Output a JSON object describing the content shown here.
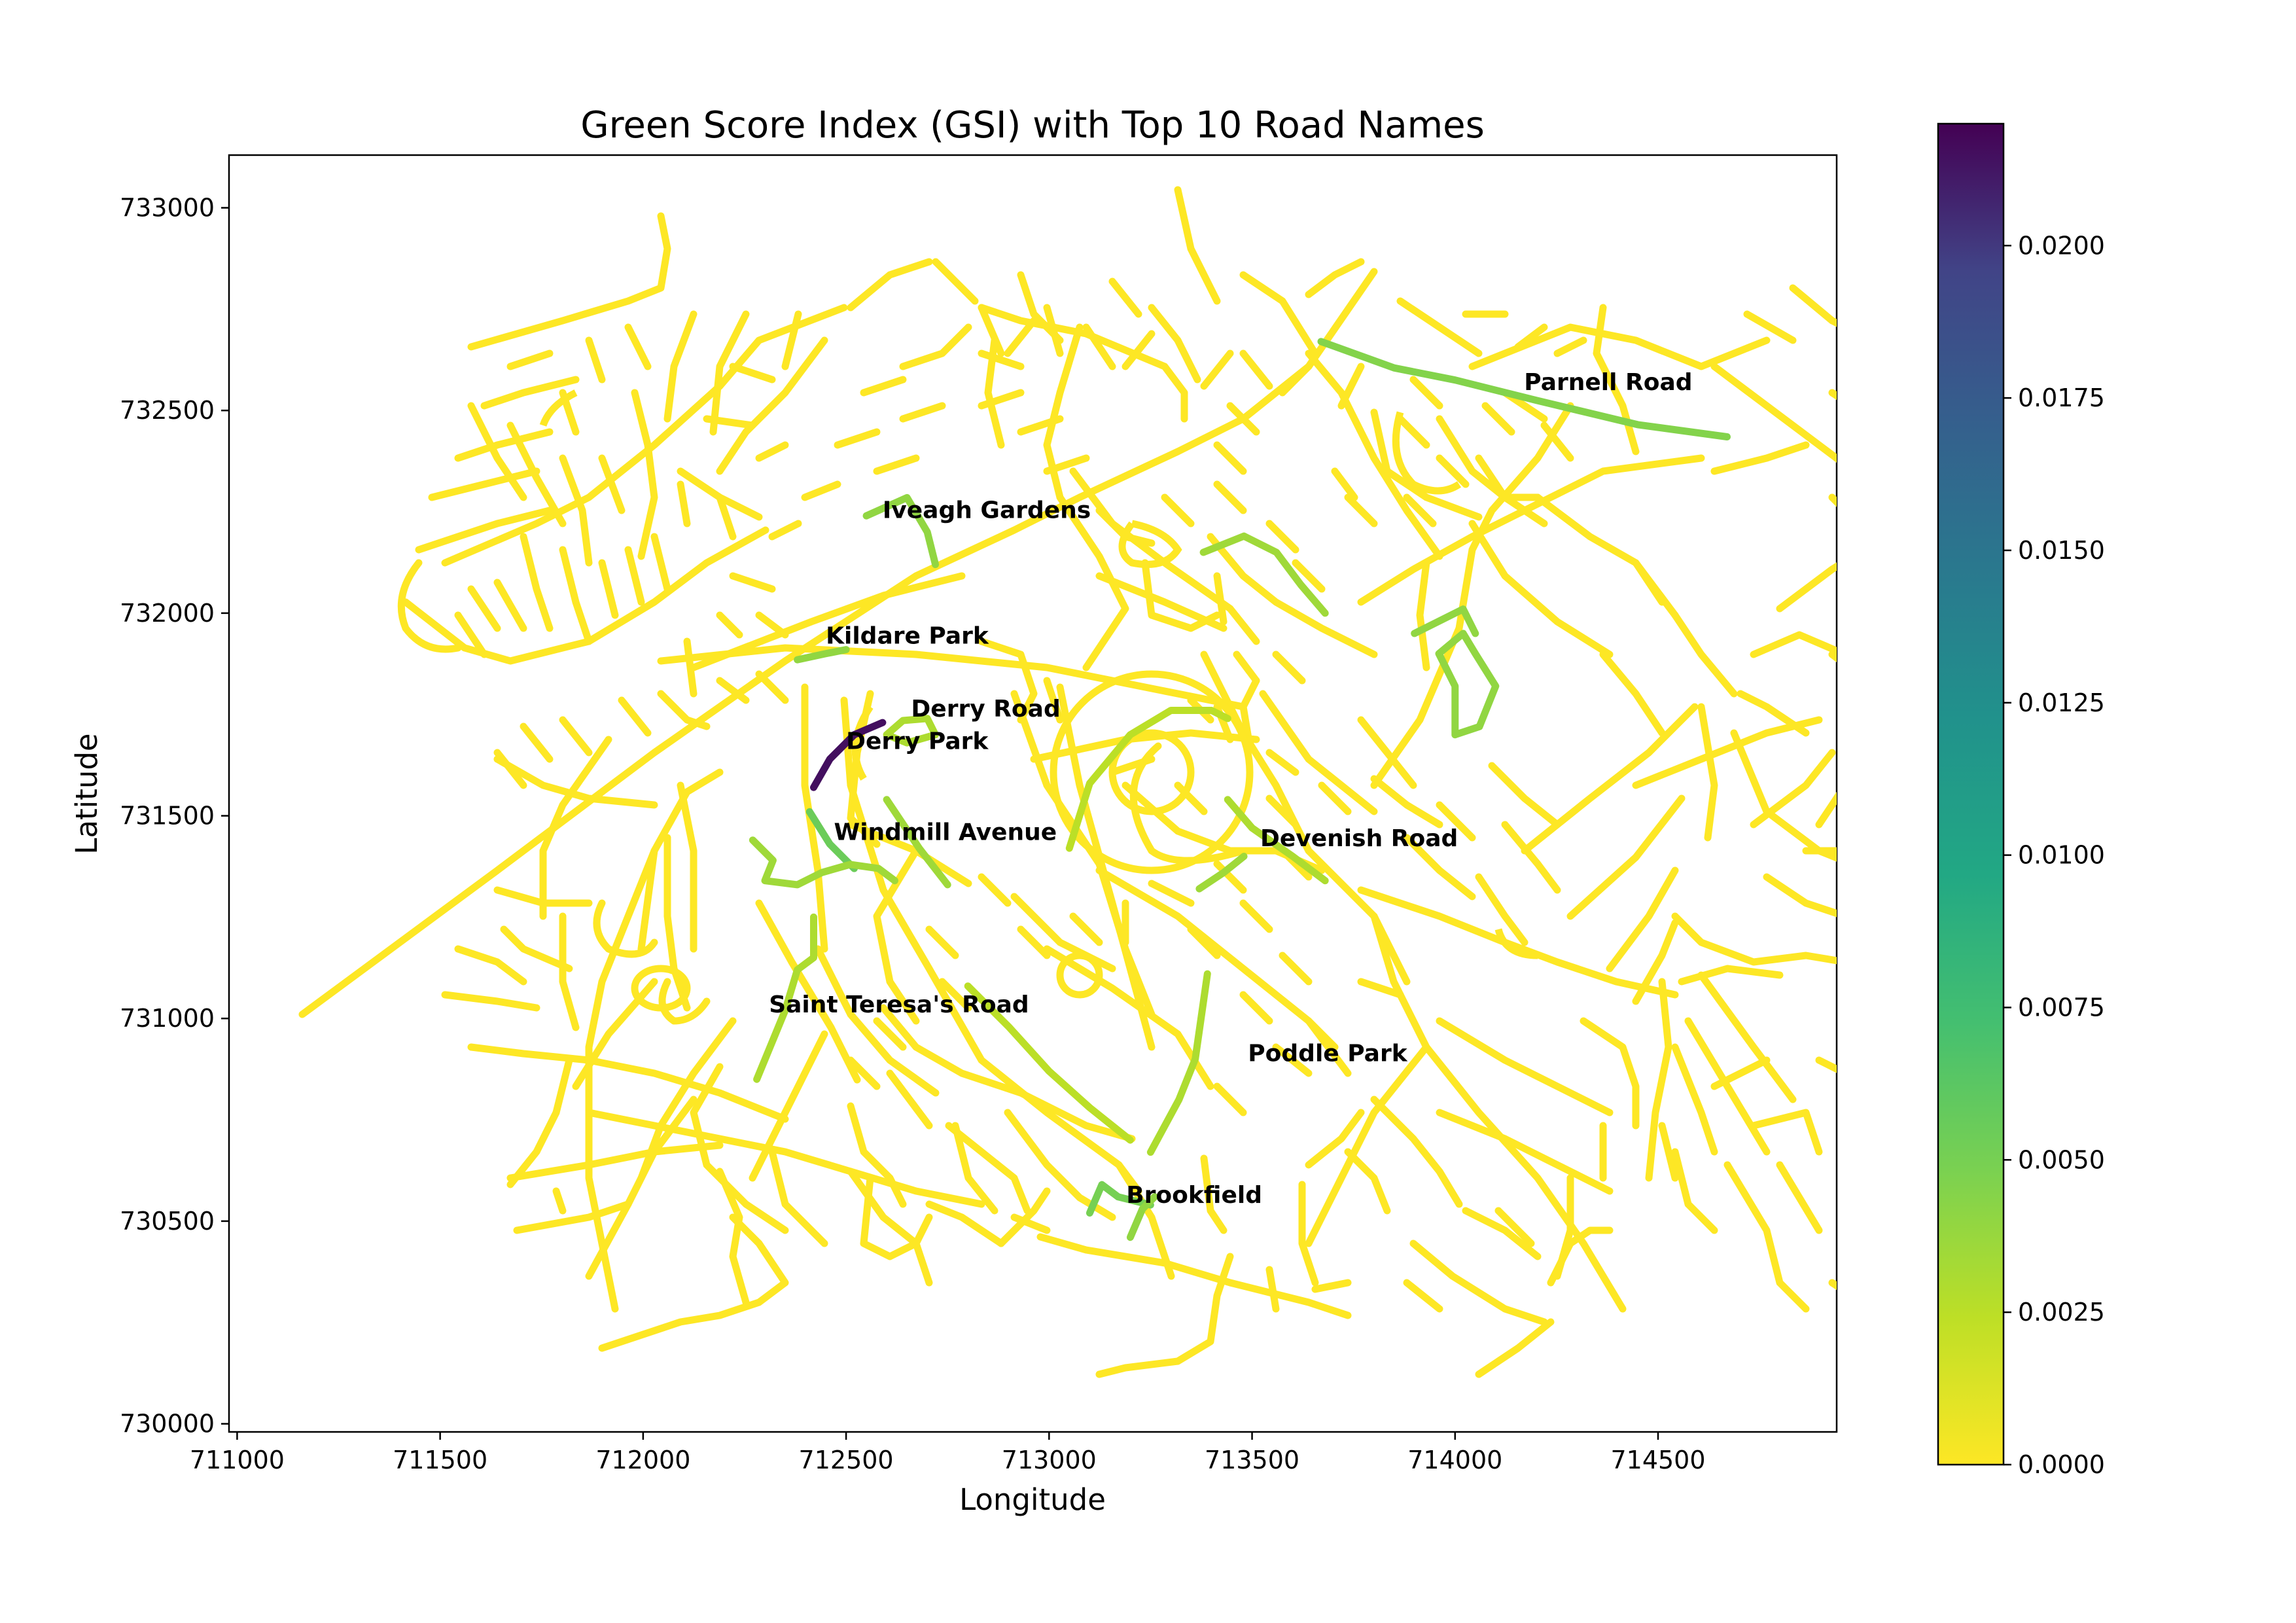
{
  "chart_data": {
    "type": "map",
    "title": "Green Score Index (GSI) with Top 10 Road Names",
    "xlabel": "Longitude",
    "ylabel": "Latitude",
    "xlim": [
      710980,
      714940
    ],
    "ylim": [
      729980,
      733130
    ],
    "xticks": [
      711000,
      711500,
      712000,
      712500,
      713000,
      713500,
      714000,
      714500
    ],
    "yticks": [
      730000,
      730500,
      731000,
      731500,
      732000,
      732500,
      733000
    ],
    "xtick_labels": [
      "711000",
      "711500",
      "712000",
      "712500",
      "713000",
      "713500",
      "714000",
      "714500"
    ],
    "ytick_labels": [
      "730000",
      "730500",
      "731000",
      "731500",
      "732000",
      "732500",
      "733000"
    ],
    "colorbar": {
      "colormap": "viridis",
      "range": [
        0.0,
        0.022
      ],
      "ticks": [
        0.0,
        0.0025,
        0.005,
        0.0075,
        0.01,
        0.0125,
        0.015,
        0.0175,
        0.02
      ],
      "tick_labels": [
        "0.0000",
        "0.0025",
        "0.0050",
        "0.0075",
        "0.0100",
        "0.0125",
        "0.0150",
        "0.0175",
        "0.0200"
      ]
    },
    "road_labels": [
      {
        "name": "Parnell Road",
        "x": 714170,
        "y": 732550
      },
      {
        "name": "Iveagh Gardens",
        "x": 712590,
        "y": 732235
      },
      {
        "name": "Kildare Park",
        "x": 712450,
        "y": 731925
      },
      {
        "name": "Derry Road",
        "x": 712660,
        "y": 731745
      },
      {
        "name": "Derry Park",
        "x": 712500,
        "y": 731665
      },
      {
        "name": "Windmill Avenue",
        "x": 712470,
        "y": 731440
      },
      {
        "name": "Devenish Road",
        "x": 713520,
        "y": 731425
      },
      {
        "name": "Saint Teresa's Road",
        "x": 712310,
        "y": 731015
      },
      {
        "name": "Poddle Park",
        "x": 713490,
        "y": 730895
      },
      {
        "name": "Brookfield",
        "x": 713190,
        "y": 730545
      }
    ],
    "highlighted_roads": [
      {
        "gsi": 0.0045,
        "points": [
          [
            713670,
            732670
          ],
          [
            713850,
            732605
          ],
          [
            714000,
            732575
          ],
          [
            714200,
            732525
          ],
          [
            714450,
            732465
          ],
          [
            714670,
            732435
          ]
        ]
      },
      {
        "gsi": 0.004,
        "points": [
          [
            712550,
            732240
          ],
          [
            712650,
            732285
          ],
          [
            712700,
            732200
          ],
          [
            712720,
            732120
          ]
        ]
      },
      {
        "gsi": 0.004,
        "points": [
          [
            712380,
            731885
          ],
          [
            712450,
            731900
          ],
          [
            712500,
            731910
          ]
        ]
      },
      {
        "gsi": 0.003,
        "points": [
          [
            712600,
            731700
          ],
          [
            712640,
            731735
          ],
          [
            712700,
            731740
          ],
          [
            712720,
            731700
          ],
          [
            712650,
            731680
          ],
          [
            712600,
            731700
          ]
        ]
      },
      {
        "gsi": 0.0215,
        "points": [
          [
            712420,
            731570
          ],
          [
            712460,
            731640
          ],
          [
            712520,
            731700
          ],
          [
            712590,
            731730
          ]
        ]
      },
      {
        "gsi": 0.0055,
        "points": [
          [
            712410,
            731510
          ],
          [
            712460,
            731430
          ],
          [
            712520,
            731370
          ]
        ]
      },
      {
        "gsi": 0.0035,
        "points": [
          [
            712270,
            731440
          ],
          [
            712320,
            731390
          ],
          [
            712300,
            731340
          ],
          [
            712380,
            731330
          ],
          [
            712440,
            731360
          ],
          [
            712510,
            731380
          ],
          [
            712580,
            731370
          ],
          [
            712620,
            731340
          ]
        ]
      },
      {
        "gsi": 0.003,
        "points": [
          [
            713440,
            731540
          ],
          [
            713500,
            731470
          ],
          [
            713600,
            731400
          ],
          [
            713680,
            731340
          ]
        ]
      },
      {
        "gsi": 0.0035,
        "points": [
          [
            713370,
            731320
          ],
          [
            713430,
            731360
          ],
          [
            713480,
            731400
          ]
        ]
      },
      {
        "gsi": 0.003,
        "points": [
          [
            712420,
            731250
          ],
          [
            712420,
            731150
          ],
          [
            712380,
            731120
          ],
          [
            712350,
            731020
          ],
          [
            712280,
            730850
          ]
        ]
      },
      {
        "gsi": 0.0025,
        "points": [
          [
            712800,
            731080
          ],
          [
            712900,
            730980
          ],
          [
            713000,
            730870
          ],
          [
            713100,
            730780
          ],
          [
            713200,
            730700
          ]
        ]
      },
      {
        "gsi": 0.003,
        "points": [
          [
            713390,
            731110
          ],
          [
            713360,
            730900
          ],
          [
            713320,
            730800
          ],
          [
            713250,
            730670
          ]
        ]
      },
      {
        "gsi": 0.005,
        "points": [
          [
            713100,
            730520
          ],
          [
            713130,
            730590
          ],
          [
            713170,
            730560
          ],
          [
            713250,
            730540
          ]
        ]
      },
      {
        "gsi": 0.004,
        "points": [
          [
            713200,
            730460
          ],
          [
            713230,
            730530
          ],
          [
            713260,
            730560
          ]
        ]
      },
      {
        "gsi": 0.0025,
        "points": [
          [
            713050,
            731420
          ],
          [
            713100,
            731580
          ],
          [
            713200,
            731700
          ],
          [
            713300,
            731760
          ],
          [
            713400,
            731760
          ],
          [
            713440,
            731740
          ]
        ]
      },
      {
        "gsi": 0.0035,
        "points": [
          [
            713380,
            732150
          ],
          [
            713480,
            732190
          ],
          [
            713560,
            732150
          ],
          [
            713620,
            732070
          ],
          [
            713680,
            732000
          ]
        ]
      },
      {
        "gsi": 0.004,
        "points": [
          [
            713900,
            731950
          ],
          [
            714020,
            732010
          ],
          [
            714050,
            731950
          ]
        ]
      },
      {
        "gsi": 0.004,
        "points": [
          [
            714000,
            731700
          ],
          [
            714000,
            731820
          ],
          [
            713960,
            731900
          ],
          [
            714020,
            731950
          ],
          [
            714050,
            731900
          ],
          [
            714100,
            731820
          ],
          [
            714060,
            731720
          ],
          [
            714000,
            731700
          ]
        ]
      },
      {
        "gsi": 0.0035,
        "points": [
          [
            712600,
            731540
          ],
          [
            712680,
            731420
          ],
          [
            712750,
            731330
          ]
        ]
      }
    ]
  }
}
